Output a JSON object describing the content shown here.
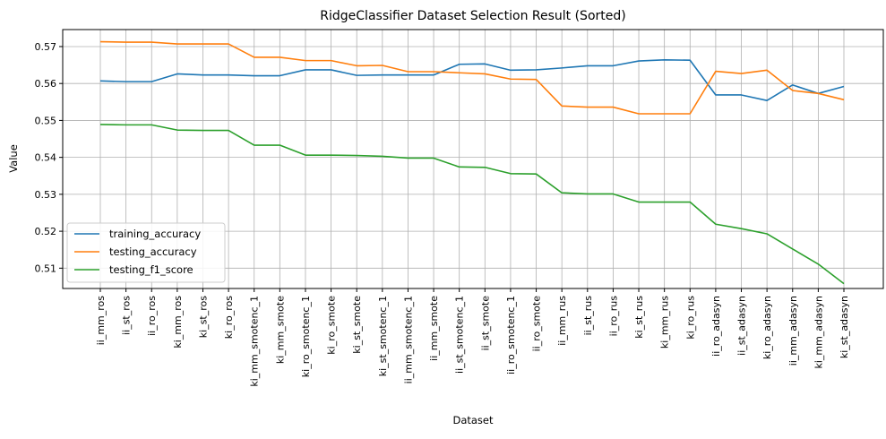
{
  "chart_data": {
    "type": "line",
    "title": "RidgeClassifier Dataset Selection Result (Sorted)",
    "xlabel": "Dataset",
    "ylabel": "Value",
    "ylim": [
      0.5045,
      0.5746
    ],
    "yticks": [
      0.51,
      0.52,
      0.53,
      0.54,
      0.55,
      0.56,
      0.57
    ],
    "grid": true,
    "legend": "lower-left",
    "categories": [
      "ii_mm_ros",
      "ii_st_ros",
      "ii_ro_ros",
      "ki_mm_ros",
      "ki_st_ros",
      "ki_ro_ros",
      "ki_mm_smotenc_1",
      "ki_mm_smote",
      "ki_ro_smotenc_1",
      "ki_ro_smote",
      "ki_st_smote",
      "ki_st_smotenc_1",
      "ii_mm_smotenc_1",
      "ii_mm_smote",
      "ii_st_smotenc_1",
      "ii_st_smote",
      "ii_ro_smotenc_1",
      "ii_ro_smote",
      "ii_mm_rus",
      "ii_st_rus",
      "ii_ro_rus",
      "ki_st_rus",
      "ki_mm_rus",
      "ki_ro_rus",
      "ii_ro_adasyn",
      "ii_st_adasyn",
      "ki_ro_adasyn",
      "ii_mm_adasyn",
      "ki_mm_adasyn",
      "ki_st_adasyn"
    ],
    "series": [
      {
        "name": "training_accuracy",
        "color": "#1f77b4",
        "values": [
          0.5607,
          0.5605,
          0.5605,
          0.5626,
          0.5623,
          0.5623,
          0.5621,
          0.5621,
          0.5637,
          0.5637,
          0.5622,
          0.5623,
          0.5623,
          0.5623,
          0.5652,
          0.5653,
          0.5636,
          0.5637,
          0.5642,
          0.5648,
          0.5648,
          0.5661,
          0.5664,
          0.5663,
          0.5569,
          0.5569,
          0.5554,
          0.5596,
          0.5573,
          0.5592
        ]
      },
      {
        "name": "testing_accuracy",
        "color": "#ff7f0e",
        "values": [
          0.5713,
          0.5712,
          0.5712,
          0.5707,
          0.5707,
          0.5707,
          0.5671,
          0.5671,
          0.5662,
          0.5662,
          0.5648,
          0.5649,
          0.5632,
          0.5632,
          0.5629,
          0.5626,
          0.5612,
          0.5611,
          0.5539,
          0.5536,
          0.5536,
          0.5518,
          0.5518,
          0.5518,
          0.5633,
          0.5627,
          0.5636,
          0.5581,
          0.5573,
          0.5556
        ]
      },
      {
        "name": "testing_f1_score",
        "color": "#2ca02c",
        "values": [
          0.5489,
          0.5488,
          0.5488,
          0.5474,
          0.5473,
          0.5473,
          0.5433,
          0.5433,
          0.5406,
          0.5406,
          0.5405,
          0.5403,
          0.5398,
          0.5398,
          0.5374,
          0.5373,
          0.5356,
          0.5355,
          0.5304,
          0.5301,
          0.5301,
          0.5279,
          0.5279,
          0.5279,
          0.5219,
          0.5207,
          0.5193,
          0.5152,
          0.5111,
          0.5058
        ]
      }
    ]
  }
}
